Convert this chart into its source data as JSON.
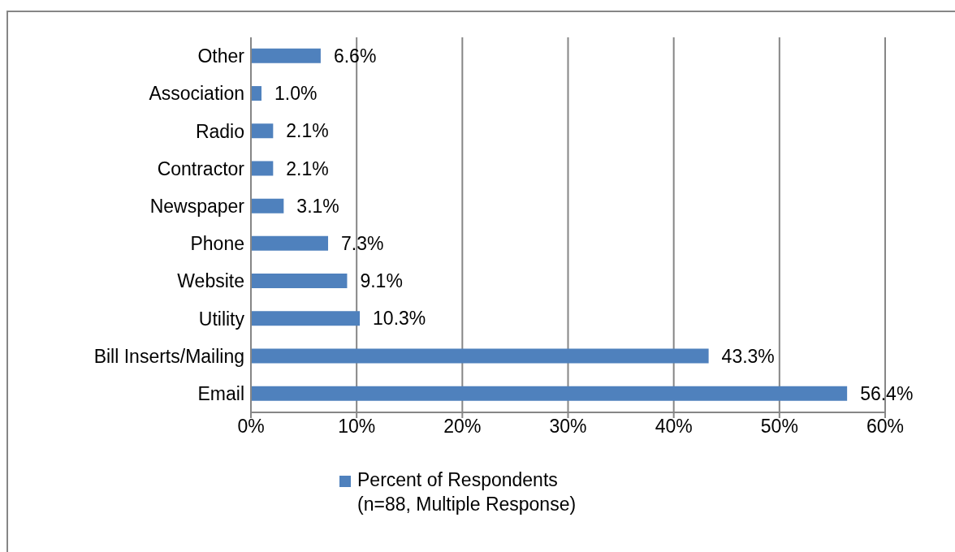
{
  "chart_data": {
    "type": "bar",
    "orientation": "horizontal",
    "categories": [
      "Other",
      "Association",
      "Radio",
      "Contractor",
      "Newspaper",
      "Phone",
      "Website",
      "Utility",
      "Bill Inserts/Mailing",
      "Email"
    ],
    "series": [
      {
        "name": "Percent of Respondents\n(n=88, Multiple Response)",
        "color": "#4f81bd",
        "values": [
          6.6,
          1.0,
          2.1,
          2.1,
          3.1,
          7.3,
          9.1,
          10.3,
          43.3,
          56.4
        ],
        "value_labels": [
          "6.6%",
          "1.0%",
          "2.1%",
          "2.1%",
          "3.1%",
          "7.3%",
          "9.1%",
          "10.3%",
          "43.3%",
          "56.4%"
        ]
      }
    ],
    "xlim": [
      0,
      60
    ],
    "xticks": [
      {
        "value": 0,
        "label": "0%"
      },
      {
        "value": 10,
        "label": "10%"
      },
      {
        "value": 20,
        "label": "20%"
      },
      {
        "value": 30,
        "label": "30%"
      },
      {
        "value": 40,
        "label": "40%"
      },
      {
        "value": 50,
        "label": "50%"
      },
      {
        "value": 60,
        "label": "60%"
      }
    ],
    "grid": "x",
    "legend": "bottom"
  }
}
